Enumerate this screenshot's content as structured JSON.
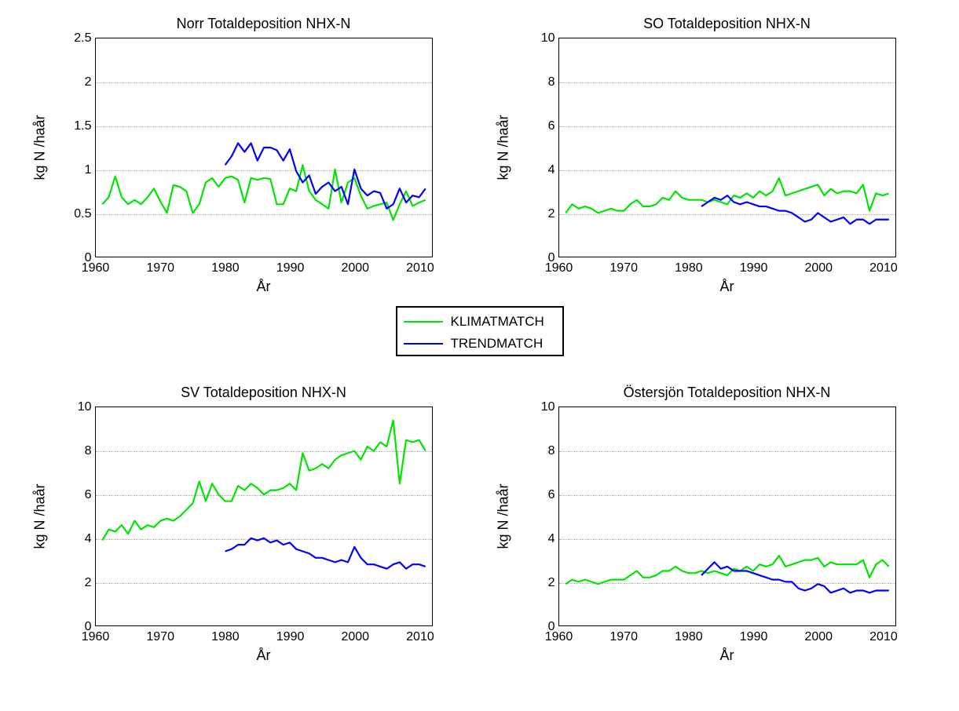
{
  "legend": {
    "items": [
      {
        "label": "KLIMATMATCH",
        "color": "#00e400"
      },
      {
        "label": "TRENDMATCH",
        "color": "#0000ff"
      }
    ]
  },
  "global": {
    "xlabel": "År",
    "ylabel": "kg N /haår",
    "x_min": 1960,
    "x_max": 2012,
    "x_ticks": [
      1960,
      1970,
      1980,
      1990,
      2000,
      2010
    ],
    "line_width": 2.2,
    "grid_color": "#aaaaaa",
    "axis_color": "#000000",
    "background_color": "#ffffff",
    "title_fontsize": 18,
    "label_fontsize": 18,
    "tick_fontsize": 16
  },
  "subplots": [
    {
      "position": "tl",
      "title": "Norr Totaldeposition NHX-N",
      "y_min": 0,
      "y_max": 2.5,
      "y_ticks": [
        0,
        0.5,
        1,
        1.5,
        2,
        2.5
      ],
      "series": [
        {
          "name": "KLIMATMATCH",
          "color": "#00e400",
          "x": [
            1961,
            1962,
            1963,
            1964,
            1965,
            1966,
            1967,
            1968,
            1969,
            1970,
            1971,
            1972,
            1973,
            1974,
            1975,
            1976,
            1977,
            1978,
            1979,
            1980,
            1981,
            1982,
            1983,
            1984,
            1985,
            1986,
            1987,
            1988,
            1989,
            1990,
            1991,
            1992,
            1993,
            1994,
            1995,
            1996,
            1997,
            1998,
            1999,
            2000,
            2001,
            2002,
            2003,
            2004,
            2005,
            2006,
            2007,
            2008,
            2009,
            2010,
            2011
          ],
          "y": [
            0.6,
            0.68,
            0.92,
            0.68,
            0.6,
            0.65,
            0.6,
            0.68,
            0.78,
            0.63,
            0.5,
            0.82,
            0.8,
            0.75,
            0.5,
            0.6,
            0.85,
            0.9,
            0.8,
            0.9,
            0.92,
            0.88,
            0.62,
            0.9,
            0.88,
            0.9,
            0.89,
            0.6,
            0.6,
            0.78,
            0.75,
            1.05,
            0.75,
            0.65,
            0.6,
            0.55,
            1.0,
            0.62,
            0.85,
            0.9,
            0.7,
            0.55,
            0.58,
            0.6,
            0.62,
            0.42,
            0.6,
            0.75,
            0.58,
            0.62,
            0.65
          ]
        },
        {
          "name": "TRENDMATCH",
          "color": "#0000ff",
          "x": [
            1980,
            1981,
            1982,
            1983,
            1984,
            1985,
            1986,
            1987,
            1988,
            1989,
            1990,
            1991,
            1992,
            1993,
            1994,
            1995,
            1996,
            1997,
            1998,
            1999,
            2000,
            2001,
            2002,
            2003,
            2004,
            2005,
            2006,
            2007,
            2008,
            2009,
            2010,
            2011
          ],
          "y": [
            1.05,
            1.15,
            1.3,
            1.2,
            1.3,
            1.1,
            1.25,
            1.25,
            1.22,
            1.1,
            1.23,
            0.98,
            0.85,
            0.93,
            0.72,
            0.8,
            0.85,
            0.75,
            0.8,
            0.6,
            1.0,
            0.78,
            0.7,
            0.75,
            0.73,
            0.55,
            0.6,
            0.78,
            0.62,
            0.7,
            0.68,
            0.78
          ]
        }
      ]
    },
    {
      "position": "tr",
      "title": "SO Totaldeposition NHX-N",
      "y_min": 0,
      "y_max": 10,
      "y_ticks": [
        0,
        2,
        4,
        6,
        8,
        10
      ],
      "series": [
        {
          "name": "KLIMATMATCH",
          "color": "#00e400",
          "x": [
            1961,
            1962,
            1963,
            1964,
            1965,
            1966,
            1967,
            1968,
            1969,
            1970,
            1971,
            1972,
            1973,
            1974,
            1975,
            1976,
            1977,
            1978,
            1979,
            1980,
            1981,
            1982,
            1983,
            1984,
            1985,
            1986,
            1987,
            1988,
            1989,
            1990,
            1991,
            1992,
            1993,
            1994,
            1995,
            1996,
            1997,
            1998,
            1999,
            2000,
            2001,
            2002,
            2003,
            2004,
            2005,
            2006,
            2007,
            2008,
            2009,
            2010,
            2011
          ],
          "y": [
            2.0,
            2.4,
            2.2,
            2.3,
            2.2,
            2.0,
            2.1,
            2.2,
            2.1,
            2.1,
            2.4,
            2.6,
            2.3,
            2.3,
            2.4,
            2.7,
            2.6,
            3.0,
            2.7,
            2.6,
            2.6,
            2.6,
            2.5,
            2.6,
            2.5,
            2.4,
            2.8,
            2.7,
            2.9,
            2.7,
            3.0,
            2.8,
            3.0,
            3.6,
            2.8,
            2.9,
            3.0,
            3.1,
            3.2,
            3.3,
            2.8,
            3.1,
            2.9,
            3.0,
            3.0,
            2.9,
            3.3,
            2.1,
            2.9,
            2.8,
            2.9
          ]
        },
        {
          "name": "TRENDMATCH",
          "color": "#0000ff",
          "x": [
            1982,
            1983,
            1984,
            1985,
            1986,
            1987,
            1988,
            1989,
            1990,
            1991,
            1992,
            1993,
            1994,
            1995,
            1996,
            1997,
            1998,
            1999,
            2000,
            2001,
            2002,
            2003,
            2004,
            2005,
            2006,
            2007,
            2008,
            2009,
            2010,
            2011
          ],
          "y": [
            2.3,
            2.5,
            2.7,
            2.6,
            2.8,
            2.5,
            2.4,
            2.5,
            2.4,
            2.3,
            2.3,
            2.2,
            2.1,
            2.1,
            2.0,
            1.8,
            1.6,
            1.7,
            2.0,
            1.8,
            1.6,
            1.7,
            1.8,
            1.5,
            1.7,
            1.7,
            1.5,
            1.7,
            1.7,
            1.7
          ]
        }
      ]
    },
    {
      "position": "bl",
      "title": "SV Totaldeposition NHX-N",
      "y_min": 0,
      "y_max": 10,
      "y_ticks": [
        0,
        2,
        4,
        6,
        8,
        10
      ],
      "series": [
        {
          "name": "KLIMATMATCH",
          "color": "#00e400",
          "x": [
            1961,
            1962,
            1963,
            1964,
            1965,
            1966,
            1967,
            1968,
            1969,
            1970,
            1971,
            1972,
            1973,
            1974,
            1975,
            1976,
            1977,
            1978,
            1979,
            1980,
            1981,
            1982,
            1983,
            1984,
            1985,
            1986,
            1987,
            1988,
            1989,
            1990,
            1991,
            1992,
            1993,
            1994,
            1995,
            1996,
            1997,
            1998,
            1999,
            2000,
            2001,
            2002,
            2003,
            2004,
            2005,
            2006,
            2007,
            2008,
            2009,
            2010,
            2011
          ],
          "y": [
            3.9,
            4.4,
            4.3,
            4.6,
            4.2,
            4.8,
            4.4,
            4.6,
            4.5,
            4.8,
            4.9,
            4.8,
            5.0,
            5.3,
            5.6,
            6.6,
            5.7,
            6.5,
            6.0,
            5.7,
            5.7,
            6.4,
            6.2,
            6.5,
            6.3,
            6.0,
            6.2,
            6.2,
            6.3,
            6.5,
            6.2,
            7.9,
            7.1,
            7.2,
            7.4,
            7.2,
            7.6,
            7.8,
            7.9,
            8.0,
            7.6,
            8.2,
            8.0,
            8.4,
            8.2,
            9.4,
            6.5,
            8.5,
            8.4,
            8.5,
            8.0
          ]
        },
        {
          "name": "TRENDMATCH",
          "color": "#0000ff",
          "x": [
            1980,
            1981,
            1982,
            1983,
            1984,
            1985,
            1986,
            1987,
            1988,
            1989,
            1990,
            1991,
            1992,
            1993,
            1994,
            1995,
            1996,
            1997,
            1998,
            1999,
            2000,
            2001,
            2002,
            2003,
            2004,
            2005,
            2006,
            2007,
            2008,
            2009,
            2010,
            2011
          ],
          "y": [
            3.4,
            3.5,
            3.7,
            3.7,
            4.0,
            3.9,
            4.0,
            3.8,
            3.9,
            3.7,
            3.8,
            3.5,
            3.4,
            3.3,
            3.1,
            3.1,
            3.0,
            2.9,
            3.0,
            2.9,
            3.6,
            3.1,
            2.8,
            2.8,
            2.7,
            2.6,
            2.8,
            2.9,
            2.6,
            2.8,
            2.8,
            2.7
          ]
        }
      ]
    },
    {
      "position": "br",
      "title": "Östersjön Totaldeposition NHX-N",
      "y_min": 0,
      "y_max": 10,
      "y_ticks": [
        0,
        2,
        4,
        6,
        8,
        10
      ],
      "series": [
        {
          "name": "KLIMATMATCH",
          "color": "#00e400",
          "x": [
            1961,
            1962,
            1963,
            1964,
            1965,
            1966,
            1967,
            1968,
            1969,
            1970,
            1971,
            1972,
            1973,
            1974,
            1975,
            1976,
            1977,
            1978,
            1979,
            1980,
            1981,
            1982,
            1983,
            1984,
            1985,
            1986,
            1987,
            1988,
            1989,
            1990,
            1991,
            1992,
            1993,
            1994,
            1995,
            1996,
            1997,
            1998,
            1999,
            2000,
            2001,
            2002,
            2003,
            2004,
            2005,
            2006,
            2007,
            2008,
            2009,
            2010,
            2011
          ],
          "y": [
            1.9,
            2.1,
            2.0,
            2.1,
            2.0,
            1.9,
            2.0,
            2.1,
            2.1,
            2.1,
            2.3,
            2.5,
            2.2,
            2.2,
            2.3,
            2.5,
            2.5,
            2.7,
            2.5,
            2.4,
            2.4,
            2.5,
            2.4,
            2.5,
            2.4,
            2.3,
            2.6,
            2.5,
            2.7,
            2.5,
            2.8,
            2.7,
            2.8,
            3.2,
            2.7,
            2.8,
            2.9,
            3.0,
            3.0,
            3.1,
            2.7,
            2.9,
            2.8,
            2.8,
            2.8,
            2.8,
            3.0,
            2.2,
            2.8,
            3.0,
            2.7
          ]
        },
        {
          "name": "TRENDMATCH",
          "color": "#0000ff",
          "x": [
            1982,
            1983,
            1984,
            1985,
            1986,
            1987,
            1988,
            1989,
            1990,
            1991,
            1992,
            1993,
            1994,
            1995,
            1996,
            1997,
            1998,
            1999,
            2000,
            2001,
            2002,
            2003,
            2004,
            2005,
            2006,
            2007,
            2008,
            2009,
            2010,
            2011
          ],
          "y": [
            2.3,
            2.6,
            2.9,
            2.6,
            2.7,
            2.5,
            2.5,
            2.5,
            2.4,
            2.3,
            2.2,
            2.1,
            2.1,
            2.0,
            2.0,
            1.7,
            1.6,
            1.7,
            1.9,
            1.8,
            1.5,
            1.6,
            1.7,
            1.5,
            1.6,
            1.6,
            1.5,
            1.6,
            1.6,
            1.6
          ]
        }
      ]
    }
  ]
}
